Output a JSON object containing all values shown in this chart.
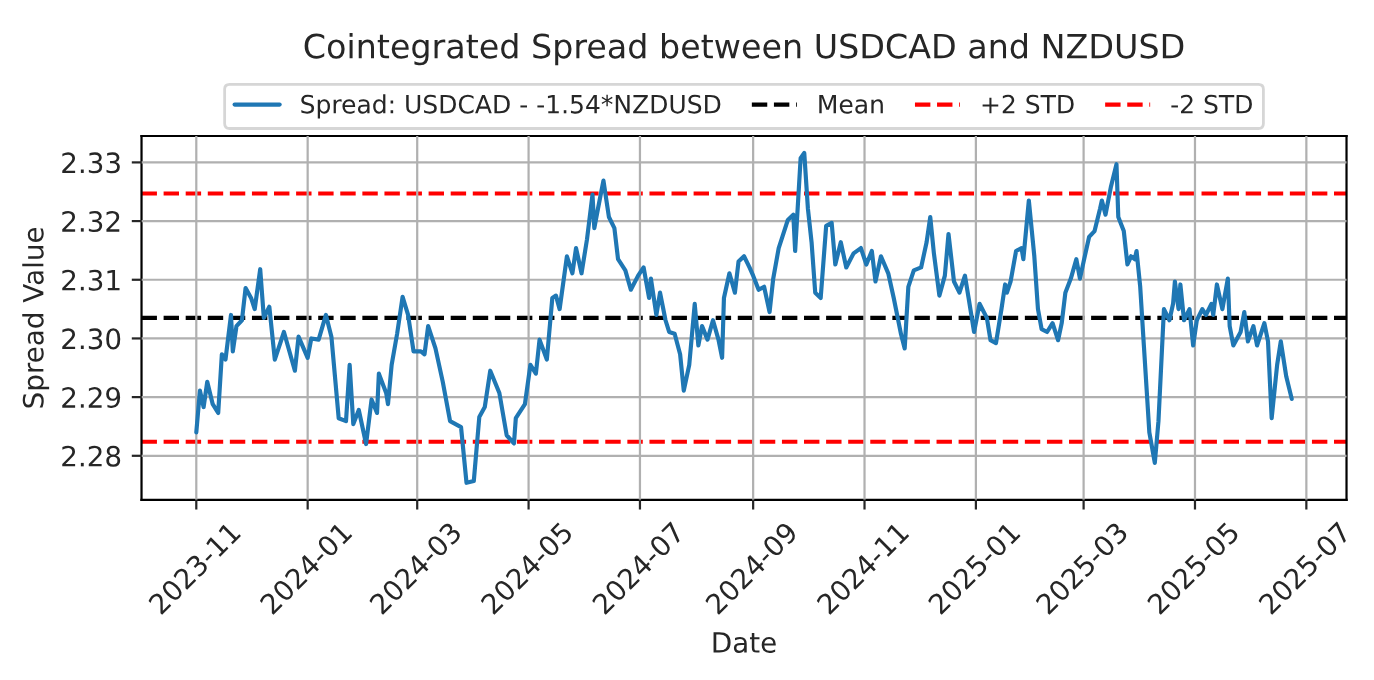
{
  "chart_data": {
    "type": "line",
    "title": "Cointegrated Spread between USDCAD and NZDUSD",
    "xlabel": "Date",
    "ylabel": "Spread Value",
    "series": [
      {
        "name": "Spread: USDCAD - -1.54*NZDUSD",
        "color": "#1f77b4",
        "x": [
          "2023-11-01",
          "2023-11-03",
          "2023-11-05",
          "2023-11-07",
          "2023-11-10",
          "2023-11-13",
          "2023-11-15",
          "2023-11-17",
          "2023-11-20",
          "2023-11-21",
          "2023-11-23",
          "2023-11-26",
          "2023-11-28",
          "2023-12-01",
          "2023-12-03",
          "2023-12-06",
          "2023-12-08",
          "2023-12-11",
          "2023-12-14",
          "2023-12-19",
          "2023-12-25",
          "2023-12-27",
          "2024-01-01",
          "2024-01-03",
          "2024-01-07",
          "2024-01-11",
          "2024-01-14",
          "2024-01-18",
          "2024-01-22",
          "2024-01-24",
          "2024-01-26",
          "2024-01-29",
          "2024-02-02",
          "2024-02-05",
          "2024-02-08",
          "2024-02-09",
          "2024-02-13",
          "2024-02-14",
          "2024-02-16",
          "2024-02-19",
          "2024-02-22",
          "2024-02-25",
          "2024-02-28",
          "2024-03-03",
          "2024-03-05",
          "2024-03-07",
          "2024-03-11",
          "2024-03-15",
          "2024-03-19",
          "2024-03-25",
          "2024-03-28",
          "2024-04-01",
          "2024-04-04",
          "2024-04-07",
          "2024-04-10",
          "2024-04-15",
          "2024-04-19",
          "2024-04-23",
          "2024-04-24",
          "2024-04-29",
          "2024-05-02",
          "2024-05-05",
          "2024-05-07",
          "2024-05-11",
          "2024-05-14",
          "2024-05-16",
          "2024-05-18",
          "2024-05-22",
          "2024-05-25",
          "2024-05-27",
          "2024-05-30",
          "2024-06-02",
          "2024-06-05",
          "2024-06-06",
          "2024-06-08",
          "2024-06-11",
          "2024-06-14",
          "2024-06-17",
          "2024-06-19",
          "2024-06-23",
          "2024-06-26",
          "2024-06-30",
          "2024-07-03",
          "2024-07-06",
          "2024-07-07",
          "2024-07-10",
          "2024-07-12",
          "2024-07-15",
          "2024-07-17",
          "2024-07-20",
          "2024-07-23",
          "2024-07-25",
          "2024-07-28",
          "2024-07-31",
          "2024-08-02",
          "2024-08-04",
          "2024-08-07",
          "2024-08-10",
          "2024-08-13",
          "2024-08-15",
          "2024-08-16",
          "2024-08-19",
          "2024-08-22",
          "2024-08-24",
          "2024-08-27",
          "2024-08-30",
          "2024-09-01",
          "2024-09-04",
          "2024-09-07",
          "2024-09-10",
          "2024-09-12",
          "2024-09-15",
          "2024-09-17",
          "2024-09-20",
          "2024-09-23",
          "2024-09-24",
          "2024-09-27",
          "2024-09-29",
          "2024-10-01",
          "2024-10-03",
          "2024-10-05",
          "2024-10-08",
          "2024-10-11",
          "2024-10-14",
          "2024-10-16",
          "2024-10-19",
          "2024-10-22",
          "2024-10-26",
          "2024-10-30",
          "2024-11-02",
          "2024-11-05",
          "2024-11-07",
          "2024-11-10",
          "2024-11-14",
          "2024-11-17",
          "2024-11-21",
          "2024-11-23",
          "2024-11-25",
          "2024-11-28",
          "2024-12-02",
          "2024-12-05",
          "2024-12-07",
          "2024-12-09",
          "2024-12-12",
          "2024-12-15",
          "2024-12-17",
          "2024-12-20",
          "2024-12-23",
          "2024-12-26",
          "2024-12-28",
          "2024-12-31",
          "2025-01-03",
          "2025-01-07",
          "2025-01-09",
          "2025-01-12",
          "2025-01-15",
          "2025-01-17",
          "2025-01-18",
          "2025-01-20",
          "2025-01-23",
          "2025-01-26",
          "2025-01-27",
          "2025-01-30",
          "2025-02-02",
          "2025-02-04",
          "2025-02-06",
          "2025-02-09",
          "2025-02-12",
          "2025-02-15",
          "2025-02-17",
          "2025-02-19",
          "2025-02-22",
          "2025-02-25",
          "2025-02-27",
          "2025-03-01",
          "2025-03-04",
          "2025-03-07",
          "2025-03-10",
          "2025-03-11",
          "2025-03-13",
          "2025-03-16",
          "2025-03-19",
          "2025-03-20",
          "2025-03-23",
          "2025-03-25",
          "2025-03-27",
          "2025-03-29",
          "2025-03-30",
          "2025-04-01",
          "2025-04-03",
          "2025-04-06",
          "2025-04-09",
          "2025-04-11",
          "2025-04-14",
          "2025-04-17",
          "2025-04-19",
          "2025-04-20",
          "2025-04-22",
          "2025-04-23",
          "2025-04-25",
          "2025-04-28",
          "2025-04-30",
          "2025-05-02",
          "2025-05-05",
          "2025-05-07",
          "2025-05-10",
          "2025-05-11",
          "2025-05-13",
          "2025-05-16",
          "2025-05-19",
          "2025-05-20",
          "2025-05-22",
          "2025-05-26",
          "2025-05-28",
          "2025-05-30",
          "2025-06-02",
          "2025-06-04",
          "2025-06-08",
          "2025-06-10",
          "2025-06-12",
          "2025-06-15",
          "2025-06-17",
          "2025-06-20",
          "2025-06-23"
        ],
        "values": [
          2.284,
          2.2911,
          2.2883,
          2.2926,
          2.2888,
          2.2873,
          2.2973,
          2.2964,
          2.304,
          2.2978,
          2.3021,
          2.3031,
          2.3086,
          2.3069,
          2.305,
          2.3118,
          2.3035,
          2.3054,
          2.2964,
          2.3011,
          2.2945,
          2.3003,
          2.2967,
          2.3,
          2.2998,
          2.304,
          2.3003,
          2.2864,
          2.2859,
          2.2955,
          2.2854,
          2.2878,
          2.282,
          2.2896,
          2.2873,
          2.294,
          2.2907,
          2.2888,
          2.2955,
          2.3008,
          2.3071,
          2.304,
          2.2978,
          2.2978,
          2.2973,
          2.3021,
          2.2983,
          2.2926,
          2.2859,
          2.2849,
          2.2754,
          2.2757,
          2.2866,
          2.2883,
          2.2945,
          2.2907,
          2.2835,
          2.2821,
          2.2864,
          2.2888,
          2.2955,
          2.294,
          2.2998,
          2.2964,
          2.3069,
          2.3073,
          2.305,
          2.314,
          2.3111,
          2.3154,
          2.3111,
          2.3169,
          2.3245,
          2.3188,
          2.3221,
          2.3269,
          2.3207,
          2.3188,
          2.3135,
          2.3116,
          2.3083,
          2.3107,
          2.3121,
          2.3069,
          2.3102,
          2.304,
          2.3078,
          2.3031,
          2.3011,
          2.3008,
          2.2973,
          2.2911,
          2.2955,
          2.3059,
          2.2988,
          2.3021,
          2.2998,
          2.3031,
          2.2998,
          2.2967,
          2.3069,
          2.3111,
          2.3078,
          2.3131,
          2.314,
          2.3121,
          2.3107,
          2.3083,
          2.3088,
          2.3045,
          2.3102,
          2.3154,
          2.3173,
          2.3202,
          2.3211,
          2.3149,
          2.3307,
          2.3316,
          2.3221,
          2.3164,
          2.3078,
          2.3069,
          2.3192,
          2.3197,
          2.3126,
          2.3164,
          2.3121,
          2.3145,
          2.3154,
          2.3126,
          2.3149,
          2.3097,
          2.314,
          2.3111,
          2.3069,
          2.3007,
          2.2983,
          2.3088,
          2.3116,
          2.3121,
          2.3164,
          2.3207,
          2.3145,
          2.3073,
          2.3107,
          2.3178,
          2.3097,
          2.3078,
          2.3107,
          2.3069,
          2.3011,
          2.3059,
          2.3035,
          2.2997,
          2.2992,
          2.305,
          2.3092,
          2.3078,
          2.3097,
          2.3149,
          2.3154,
          2.3135,
          2.3235,
          2.314,
          2.305,
          2.3016,
          2.3011,
          2.3026,
          2.2997,
          2.3026,
          2.3078,
          2.3102,
          2.3135,
          2.3102,
          2.3131,
          2.3173,
          2.3183,
          2.3221,
          2.3235,
          2.3211,
          2.3259,
          2.3297,
          2.3207,
          2.3183,
          2.3126,
          2.314,
          2.3135,
          2.3149,
          2.3088,
          2.2988,
          2.284,
          2.2788,
          2.2859,
          2.305,
          2.3031,
          2.3059,
          2.3097,
          2.305,
          2.3092,
          2.3031,
          2.305,
          2.2988,
          2.3031,
          2.305,
          2.304,
          2.3059,
          2.304,
          2.3092,
          2.305,
          2.3102,
          2.3021,
          2.2988,
          2.3011,
          2.3045,
          2.2995,
          2.3021,
          2.2988,
          2.3026,
          2.2995,
          2.2864,
          2.2955,
          2.2995,
          2.2935,
          2.2897
        ]
      }
    ],
    "ref_lines": [
      {
        "axis": "y",
        "value": 2.3035,
        "label": "Mean",
        "color": "#000000",
        "line_style": "dashed"
      },
      {
        "axis": "y",
        "value": 2.3247,
        "label": "+2 STD",
        "color": "#ff0000",
        "line_style": "dashed"
      },
      {
        "axis": "y",
        "value": 2.2824,
        "label": "-2 STD",
        "color": "#ff0000",
        "line_style": "dashed"
      }
    ],
    "xlim": [
      "2023-10-02",
      "2025-07-23"
    ],
    "xticks": [
      "2023-11",
      "2024-01",
      "2024-03",
      "2024-05",
      "2024-07",
      "2024-09",
      "2024-11",
      "2025-01",
      "2025-03",
      "2025-05",
      "2025-07"
    ],
    "ylim": [
      2.2725,
      2.3345
    ],
    "yticks": [
      2.28,
      2.29,
      {
        "value": 2.3,
        "label": "2.30"
      },
      2.31,
      2.32,
      2.33
    ],
    "grid": true,
    "legend": "top",
    "line_style": "solid",
    "marker": "none"
  }
}
